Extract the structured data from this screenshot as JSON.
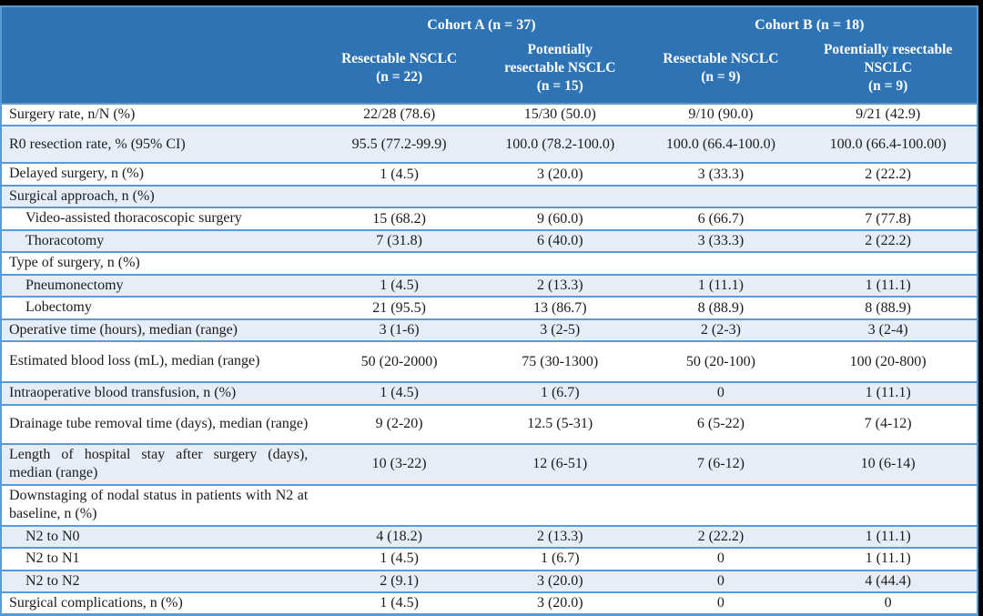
{
  "colors": {
    "header_bg": "#2E74B5",
    "band_bg": "#E7EDF7",
    "border_blue": "#5B9BD5",
    "header_text": "#FFFFFF",
    "body_text": "#1C1C1C",
    "frame_bg": "#000000"
  },
  "table": {
    "cohorts": [
      {
        "label": "Cohort A (n = 37)"
      },
      {
        "label": "Cohort B (n = 18)"
      }
    ],
    "columns": [
      {
        "name": "Resectable NSCLC",
        "n": "(n = 22)"
      },
      {
        "name": "Potentially resectable NSCLC",
        "n": "(n = 15)"
      },
      {
        "name": "Resectable NSCLC",
        "n": "(n = 9)"
      },
      {
        "name": "Potentially resectable NSCLC",
        "n": "(n = 9)"
      }
    ],
    "rows": [
      {
        "label": "Surgery rate, n/N (%)",
        "indent": false,
        "values": [
          "22/28 (78.6)",
          "15/30 (50.0)",
          "9/10 (90.0)",
          "9/21 (42.9)"
        ]
      },
      {
        "label": "R0 resection rate, % (95% CI)",
        "indent": false,
        "values": [
          "95.5 (77.2-99.9)",
          "100.0 (78.2-100.0)",
          "100.0 (66.4-100.0)",
          "100.0 (66.4-100.00)"
        ]
      },
      {
        "label": "Delayed surgery, n (%)",
        "indent": false,
        "values": [
          "1 (4.5)",
          "3 (20.0)",
          "3 (33.3)",
          "2 (22.2)"
        ]
      },
      {
        "label": "Surgical approach, n (%)",
        "indent": false,
        "values": [
          "",
          "",
          "",
          ""
        ]
      },
      {
        "label": "Video-assisted thoracoscopic surgery",
        "indent": true,
        "values": [
          "15 (68.2)",
          "9 (60.0)",
          "6 (66.7)",
          "7 (77.8)"
        ]
      },
      {
        "label": "Thoracotomy",
        "indent": true,
        "values": [
          "7 (31.8)",
          "6 (40.0)",
          "3 (33.3)",
          "2 (22.2)"
        ]
      },
      {
        "label": "Type of surgery, n (%)",
        "indent": false,
        "values": [
          "",
          "",
          "",
          ""
        ]
      },
      {
        "label": "Pneumonectomy",
        "indent": true,
        "values": [
          "1 (4.5)",
          "2 (13.3)",
          "1 (11.1)",
          "1 (11.1)"
        ]
      },
      {
        "label": "Lobectomy",
        "indent": true,
        "values": [
          "21 (95.5)",
          "13 (86.7)",
          "8 (88.9)",
          "8 (88.9)"
        ]
      },
      {
        "label": "Operative time (hours), median (range)",
        "indent": false,
        "values": [
          "3 (1-6)",
          "3 (2-5)",
          "2 (2-3)",
          "3 (2-4)"
        ]
      },
      {
        "label": "Estimated blood loss (mL), median (range)",
        "indent": false,
        "values": [
          "50 (20-2000)",
          "75 (30-1300)",
          "50 (20-100)",
          "100 (20-800)"
        ]
      },
      {
        "label": "Intraoperative blood transfusion, n (%)",
        "indent": false,
        "values": [
          "1 (4.5)",
          "1 (6.7)",
          "0",
          "1 (11.1)"
        ]
      },
      {
        "label": "Drainage tube removal time (days), median (range)",
        "indent": false,
        "values": [
          "9 (2-20)",
          "12.5 (5-31)",
          "6 (5-22)",
          "7 (4-12)"
        ]
      },
      {
        "label": "Length of hospital stay after surgery (days), median (range)",
        "indent": false,
        "values": [
          "10 (3-22)",
          "12 (6-51)",
          "7 (6-12)",
          "10 (6-14)"
        ]
      },
      {
        "label": "Downstaging of nodal status in patients with N2 at baseline, n (%)",
        "indent": false,
        "values": [
          "",
          "",
          "",
          ""
        ]
      },
      {
        "label": "N2 to N0",
        "indent": true,
        "values": [
          "4 (18.2)",
          "2 (13.3)",
          "2 (22.2)",
          "1 (11.1)"
        ]
      },
      {
        "label": "N2 to N1",
        "indent": true,
        "values": [
          "1 (4.5)",
          "1 (6.7)",
          "0",
          "1 (11.1)"
        ]
      },
      {
        "label": "N2 to N2",
        "indent": true,
        "values": [
          "2 (9.1)",
          "3 (20.0)",
          "0",
          "4 (44.4)"
        ]
      },
      {
        "label": "Surgical complications, n (%)",
        "indent": false,
        "values": [
          "1 (4.5)",
          "3 (20.0)",
          "0",
          "0"
        ]
      }
    ]
  }
}
